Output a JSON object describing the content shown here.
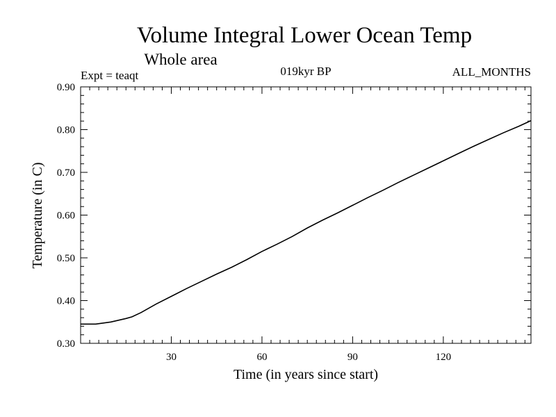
{
  "chart_data": {
    "type": "line",
    "title": "Volume Integral Lower Ocean Temp",
    "subtitle": "Whole area",
    "expt_label": "Expt = teaqt",
    "period_label": "019kyr BP",
    "months_label": "ALL_MONTHS",
    "xlabel": "Time (in years since start)",
    "ylabel": "Temperature (in C)",
    "xlim": [
      0,
      149
    ],
    "ylim": [
      0.3,
      0.9
    ],
    "xticks": [
      30,
      60,
      90,
      120
    ],
    "xtick_labels": [
      "30",
      "60",
      "90",
      "120"
    ],
    "yticks": [
      0.3,
      0.4,
      0.5,
      0.6,
      0.7,
      0.8,
      0.9
    ],
    "ytick_labels": [
      "0.30",
      "0.40",
      "0.50",
      "0.60",
      "0.70",
      "0.80",
      "0.90"
    ],
    "grid": false,
    "series": [
      {
        "name": "Volume integral lower ocean temperature",
        "x": [
          0,
          5,
          10,
          15,
          17,
          20,
          25,
          30,
          35,
          40,
          45,
          50,
          55,
          60,
          65,
          70,
          75,
          80,
          85,
          90,
          95,
          100,
          105,
          110,
          115,
          120,
          125,
          130,
          135,
          140,
          145,
          149
        ],
        "y": [
          0.345,
          0.345,
          0.35,
          0.358,
          0.362,
          0.372,
          0.392,
          0.41,
          0.428,
          0.445,
          0.462,
          0.478,
          0.496,
          0.515,
          0.532,
          0.55,
          0.57,
          0.588,
          0.605,
          0.623,
          0.641,
          0.658,
          0.676,
          0.693,
          0.71,
          0.727,
          0.744,
          0.761,
          0.777,
          0.793,
          0.808,
          0.821
        ]
      }
    ]
  }
}
